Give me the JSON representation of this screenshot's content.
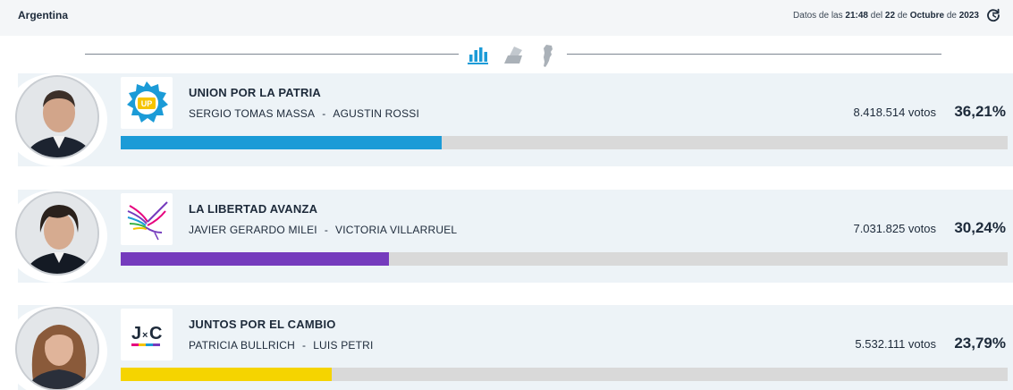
{
  "header": {
    "region": "Argentina",
    "stamp_prefix": "Datos de las",
    "time": "21:48",
    "stamp_del": "del",
    "day": "22",
    "stamp_de1": "de",
    "month": "Octubre",
    "stamp_de2": "de",
    "year": "2023",
    "refresh_icon": "refresh-icon"
  },
  "views": [
    {
      "name": "bar-chart-view",
      "icon": "bar-chart-icon",
      "color": "#1b9bd7",
      "active": true
    },
    {
      "name": "ballot-box-view",
      "icon": "ballot-box-icon",
      "color": "#aab1b8",
      "active": false
    },
    {
      "name": "map-view",
      "icon": "argentina-map-icon",
      "color": "#aab1b8",
      "active": false
    }
  ],
  "results": [
    {
      "party": "UNION POR LA PATRIA",
      "president": "SERGIO TOMAS MASSA",
      "separator": "-",
      "vice": "AGUSTIN ROSSI",
      "votes": "8.418.514 votos",
      "percent": "36,21%",
      "share": 0.3621,
      "color": "#1b9bd7",
      "logo_text": "UP"
    },
    {
      "party": "LA LIBERTAD AVANZA",
      "president": "JAVIER GERARDO MILEI",
      "separator": "-",
      "vice": "VICTORIA VILLARRUEL",
      "votes": "7.031.825 votos",
      "percent": "30,24%",
      "share": 0.3024,
      "color": "#753bbd",
      "logo_text": ""
    },
    {
      "party": "JUNTOS POR EL CAMBIO",
      "president": "PATRICIA BULLRICH",
      "separator": "-",
      "vice": "LUIS PETRI",
      "votes": "5.532.111 votos",
      "percent": "23,79%",
      "share": 0.2379,
      "color": "#f5d400",
      "logo_text_j": "J",
      "logo_text_x": "×",
      "logo_text_c": "C"
    }
  ]
}
